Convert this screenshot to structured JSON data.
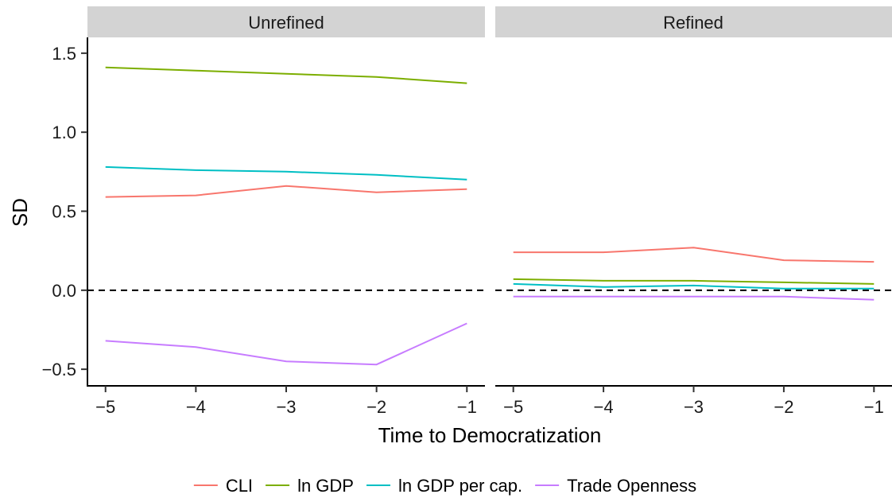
{
  "chart_data": {
    "type": "line",
    "xlabel": "Time to Democratization",
    "ylabel": "SD",
    "xlim": [
      -5.2,
      -0.8
    ],
    "ylim": [
      -0.6,
      1.6
    ],
    "x_ticks": [
      -5,
      -4,
      -3,
      -2,
      -1
    ],
    "x_tick_labels": [
      "−5",
      "−4",
      "−3",
      "−2",
      "−1"
    ],
    "y_ticks": [
      -0.5,
      0.0,
      0.5,
      1.0,
      1.5
    ],
    "y_tick_labels": [
      "−0.5",
      "0.0",
      "0.5",
      "1.0",
      "1.5"
    ],
    "reference_line": {
      "y": 0,
      "style": "dashed"
    },
    "legend_position": "bottom",
    "grid": false,
    "panels": [
      {
        "title": "Unrefined",
        "x": [
          -5,
          -4,
          -3,
          -2,
          -1
        ],
        "series": [
          {
            "name": "CLI",
            "color": "#F8766D",
            "values": [
              0.59,
              0.6,
              0.66,
              0.62,
              0.64
            ]
          },
          {
            "name": "ln GDP",
            "color": "#7CAE00",
            "values": [
              1.41,
              1.39,
              1.37,
              1.35,
              1.31
            ]
          },
          {
            "name": "ln GDP per cap.",
            "color": "#00BFC4",
            "values": [
              0.78,
              0.76,
              0.75,
              0.73,
              0.7
            ]
          },
          {
            "name": "Trade Openness",
            "color": "#C77CFF",
            "values": [
              -0.32,
              -0.36,
              -0.45,
              -0.47,
              -0.21
            ]
          }
        ]
      },
      {
        "title": "Refined",
        "x": [
          -5,
          -4,
          -3,
          -2,
          -1
        ],
        "series": [
          {
            "name": "CLI",
            "color": "#F8766D",
            "values": [
              0.24,
              0.24,
              0.27,
              0.19,
              0.18
            ]
          },
          {
            "name": "ln GDP",
            "color": "#7CAE00",
            "values": [
              0.07,
              0.06,
              0.06,
              0.05,
              0.04
            ]
          },
          {
            "name": "ln GDP per cap.",
            "color": "#00BFC4",
            "values": [
              0.04,
              0.02,
              0.03,
              0.01,
              0.01
            ]
          },
          {
            "name": "Trade Openness",
            "color": "#C77CFF",
            "values": [
              -0.04,
              -0.04,
              -0.04,
              -0.04,
              -0.06
            ]
          }
        ]
      }
    ],
    "legend": [
      {
        "name": "CLI",
        "color": "#F8766D"
      },
      {
        "name": "ln GDP",
        "color": "#7CAE00"
      },
      {
        "name": "ln GDP per cap.",
        "color": "#00BFC4"
      },
      {
        "name": "Trade Openness",
        "color": "#C77CFF"
      }
    ]
  }
}
